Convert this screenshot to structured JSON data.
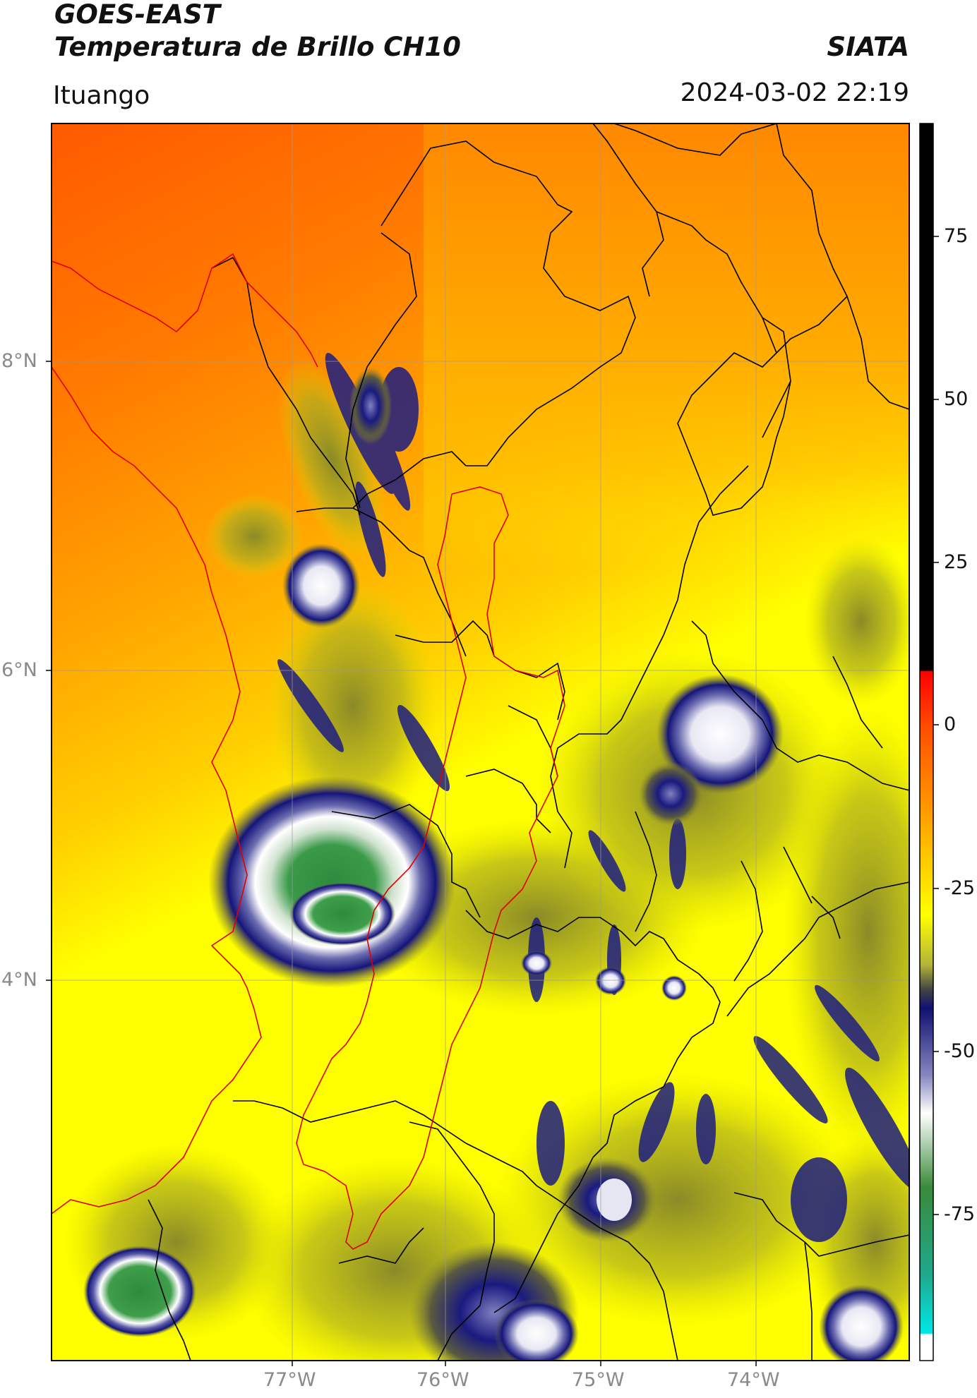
{
  "header": {
    "satellite": "GOES-EAST",
    "product": "Temperatura de Brillo CH10",
    "institution": "SIATA",
    "region": "Ituango",
    "datetime": "2024-03-02 22:19"
  },
  "map": {
    "longitude_ticks": [
      "77°W",
      "76°W",
      "75°W",
      "74°W"
    ],
    "latitude_ticks": [
      "8°N",
      "6°N",
      "4°N"
    ],
    "gridlines": true
  },
  "colorbar": {
    "labels": [
      "75",
      "50",
      "25",
      "0",
      "-25",
      "-50",
      "-75"
    ],
    "colors": {
      "black_top": "#000000",
      "red": "#ff0000",
      "orange": "#ff9900",
      "yellow": "#ffff00",
      "olive": "#9a9a3a",
      "navy": "#101070",
      "white": "#ffffff",
      "green": "#2e8b3e",
      "cyan": "#00e5e5"
    }
  },
  "colors": {
    "coastline": "#e00000",
    "borders": "#000000",
    "gridline": "#9a9a9a"
  }
}
